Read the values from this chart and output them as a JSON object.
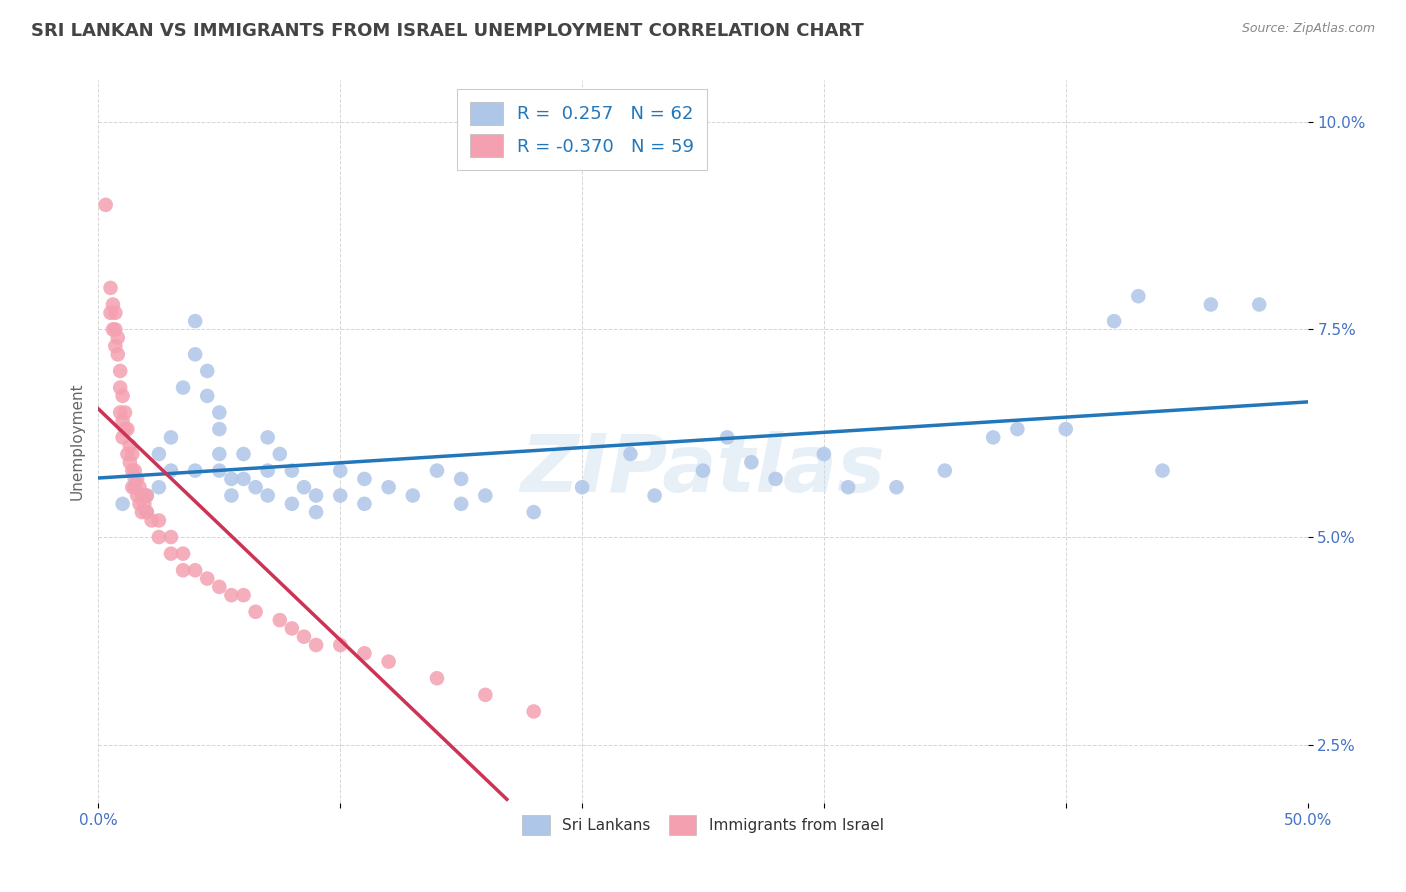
{
  "title": "SRI LANKAN VS IMMIGRANTS FROM ISRAEL UNEMPLOYMENT CORRELATION CHART",
  "source": "Source: ZipAtlas.com",
  "ylabel": "Unemployment",
  "xlim": [
    0.0,
    0.5
  ],
  "ylim": [
    0.018,
    0.105
  ],
  "xticks": [
    0.0,
    0.1,
    0.2,
    0.3,
    0.4,
    0.5
  ],
  "xticklabels": [
    "0.0%",
    "",
    "",
    "",
    "",
    "50.0%"
  ],
  "yticks": [
    0.025,
    0.05,
    0.075,
    0.1
  ],
  "yticklabels": [
    "2.5%",
    "5.0%",
    "7.5%",
    "10.0%"
  ],
  "blue_color": "#aec6e8",
  "pink_color": "#f4a0b0",
  "blue_line_color": "#2277bb",
  "pink_line_color": "#cc3355",
  "pink_line_dash_color": "#e8b0c0",
  "watermark": "ZIPatlas",
  "background_color": "#ffffff",
  "grid_color": "#cccccc",
  "title_color": "#444444",
  "axis_tick_color": "#4472c4",
  "blue_scatter": [
    [
      0.01,
      0.054
    ],
    [
      0.015,
      0.057
    ],
    [
      0.02,
      0.055
    ],
    [
      0.02,
      0.053
    ],
    [
      0.025,
      0.06
    ],
    [
      0.025,
      0.056
    ],
    [
      0.03,
      0.062
    ],
    [
      0.03,
      0.058
    ],
    [
      0.035,
      0.068
    ],
    [
      0.04,
      0.072
    ],
    [
      0.04,
      0.076
    ],
    [
      0.04,
      0.058
    ],
    [
      0.045,
      0.07
    ],
    [
      0.045,
      0.067
    ],
    [
      0.05,
      0.065
    ],
    [
      0.05,
      0.063
    ],
    [
      0.05,
      0.06
    ],
    [
      0.05,
      0.058
    ],
    [
      0.055,
      0.057
    ],
    [
      0.055,
      0.055
    ],
    [
      0.06,
      0.06
    ],
    [
      0.06,
      0.057
    ],
    [
      0.065,
      0.056
    ],
    [
      0.07,
      0.062
    ],
    [
      0.07,
      0.058
    ],
    [
      0.07,
      0.055
    ],
    [
      0.075,
      0.06
    ],
    [
      0.08,
      0.058
    ],
    [
      0.08,
      0.054
    ],
    [
      0.085,
      0.056
    ],
    [
      0.09,
      0.055
    ],
    [
      0.09,
      0.053
    ],
    [
      0.1,
      0.058
    ],
    [
      0.1,
      0.055
    ],
    [
      0.11,
      0.057
    ],
    [
      0.11,
      0.054
    ],
    [
      0.12,
      0.056
    ],
    [
      0.13,
      0.055
    ],
    [
      0.14,
      0.058
    ],
    [
      0.15,
      0.057
    ],
    [
      0.15,
      0.054
    ],
    [
      0.16,
      0.055
    ],
    [
      0.18,
      0.053
    ],
    [
      0.2,
      0.056
    ],
    [
      0.22,
      0.06
    ],
    [
      0.23,
      0.055
    ],
    [
      0.25,
      0.058
    ],
    [
      0.26,
      0.062
    ],
    [
      0.27,
      0.059
    ],
    [
      0.28,
      0.057
    ],
    [
      0.3,
      0.06
    ],
    [
      0.31,
      0.056
    ],
    [
      0.33,
      0.056
    ],
    [
      0.35,
      0.058
    ],
    [
      0.37,
      0.062
    ],
    [
      0.38,
      0.063
    ],
    [
      0.4,
      0.063
    ],
    [
      0.42,
      0.076
    ],
    [
      0.43,
      0.079
    ],
    [
      0.44,
      0.058
    ],
    [
      0.46,
      0.078
    ],
    [
      0.48,
      0.078
    ]
  ],
  "pink_scatter": [
    [
      0.003,
      0.09
    ],
    [
      0.005,
      0.08
    ],
    [
      0.005,
      0.077
    ],
    [
      0.006,
      0.078
    ],
    [
      0.006,
      0.075
    ],
    [
      0.007,
      0.077
    ],
    [
      0.007,
      0.075
    ],
    [
      0.007,
      0.073
    ],
    [
      0.008,
      0.074
    ],
    [
      0.008,
      0.072
    ],
    [
      0.009,
      0.07
    ],
    [
      0.009,
      0.068
    ],
    [
      0.009,
      0.065
    ],
    [
      0.01,
      0.067
    ],
    [
      0.01,
      0.064
    ],
    [
      0.01,
      0.062
    ],
    [
      0.011,
      0.065
    ],
    [
      0.011,
      0.063
    ],
    [
      0.012,
      0.063
    ],
    [
      0.012,
      0.06
    ],
    [
      0.013,
      0.061
    ],
    [
      0.013,
      0.059
    ],
    [
      0.014,
      0.06
    ],
    [
      0.014,
      0.058
    ],
    [
      0.014,
      0.056
    ],
    [
      0.015,
      0.058
    ],
    [
      0.015,
      0.056
    ],
    [
      0.016,
      0.057
    ],
    [
      0.016,
      0.055
    ],
    [
      0.017,
      0.056
    ],
    [
      0.017,
      0.054
    ],
    [
      0.018,
      0.055
    ],
    [
      0.018,
      0.053
    ],
    [
      0.019,
      0.054
    ],
    [
      0.02,
      0.055
    ],
    [
      0.02,
      0.053
    ],
    [
      0.022,
      0.052
    ],
    [
      0.025,
      0.052
    ],
    [
      0.025,
      0.05
    ],
    [
      0.03,
      0.05
    ],
    [
      0.03,
      0.048
    ],
    [
      0.035,
      0.048
    ],
    [
      0.035,
      0.046
    ],
    [
      0.04,
      0.046
    ],
    [
      0.045,
      0.045
    ],
    [
      0.05,
      0.044
    ],
    [
      0.055,
      0.043
    ],
    [
      0.06,
      0.043
    ],
    [
      0.065,
      0.041
    ],
    [
      0.075,
      0.04
    ],
    [
      0.08,
      0.039
    ],
    [
      0.085,
      0.038
    ],
    [
      0.09,
      0.037
    ],
    [
      0.1,
      0.037
    ],
    [
      0.11,
      0.036
    ],
    [
      0.12,
      0.035
    ],
    [
      0.14,
      0.033
    ],
    [
      0.16,
      0.031
    ],
    [
      0.18,
      0.029
    ]
  ]
}
